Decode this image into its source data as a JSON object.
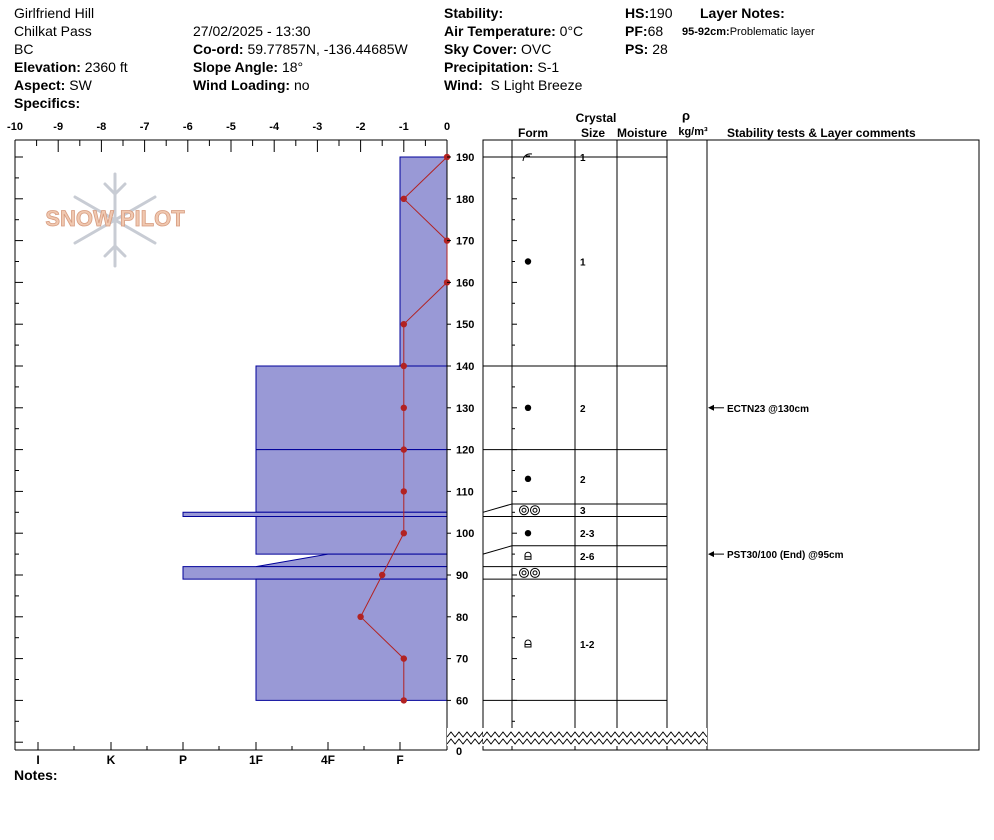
{
  "header": {
    "location": "Girlfriend Hill",
    "area": "Chilkat Pass",
    "region": "BC",
    "datetime": "27/02/2025 - 13:30",
    "elevation_label": "Elevation:",
    "elevation": "2360 ft",
    "aspect_label": "Aspect:",
    "aspect": "SW",
    "specifics_label": "Specifics:",
    "coord_label": "Co-ord:",
    "coord": "59.77857N, -136.44685W",
    "slope_label": "Slope Angle:",
    "slope": "18°",
    "wind_loading_label": "Wind Loading:",
    "wind_loading": "no",
    "stability_label": "Stability:",
    "stability": "",
    "air_temp_label": "Air Temperature:",
    "air_temp": "0°C",
    "sky_label": "Sky Cover:",
    "sky": "OVC",
    "precip_label": "Precipitation:",
    "precip": "S-1",
    "wind_label": "Wind:",
    "wind": "S Light Breeze",
    "hs_label": "HS:",
    "hs": "190",
    "pf_label": "PF:",
    "pf": "68",
    "ps_label": "PS:",
    "ps": "28",
    "layer_notes_label": "Layer Notes:",
    "layer_note_range": "95-92cm:",
    "layer_note_text": "Problematic layer",
    "notes_label": "Notes:",
    "logo_text": "SNOW PILOT"
  },
  "colors": {
    "hardness_fill": "#9999d6",
    "hardness_stroke": "#000099",
    "temp_line": "#b22222",
    "logo": "#f0c8b0"
  },
  "chart_data": {
    "type": "snow_profile",
    "temp_axis": {
      "min": -10,
      "max": 0,
      "ticks": [
        "-10",
        "-9",
        "-8",
        "-7",
        "-6",
        "-5",
        "-4",
        "-3",
        "-2",
        "-1",
        "0"
      ]
    },
    "depth_axis": {
      "min": 60,
      "max": 190,
      "ticks": [
        "190",
        "180",
        "170",
        "160",
        "150",
        "140",
        "130",
        "120",
        "110",
        "100",
        "90",
        "80",
        "70",
        "60"
      ],
      "zero_label": "0"
    },
    "hardness_axis": {
      "labels": [
        "I",
        "K",
        "P",
        "1F",
        "4F",
        "F"
      ]
    },
    "column_headers": {
      "crystal": "Crystal",
      "form": "Form",
      "size": "Size",
      "moisture": "Moisture",
      "density_symbol": "ρ",
      "density_unit": "kg/m³",
      "comments": "Stability tests & Layer comments"
    },
    "temperature_profile": [
      {
        "depth": 190,
        "temp": 0
      },
      {
        "depth": 180,
        "temp": -1
      },
      {
        "depth": 170,
        "temp": 0
      },
      {
        "depth": 160,
        "temp": 0
      },
      {
        "depth": 150,
        "temp": -1
      },
      {
        "depth": 140,
        "temp": -1
      },
      {
        "depth": 130,
        "temp": -1
      },
      {
        "depth": 120,
        "temp": -1
      },
      {
        "depth": 110,
        "temp": -1
      },
      {
        "depth": 100,
        "temp": -1
      },
      {
        "depth": 90,
        "temp": -1.5
      },
      {
        "depth": 80,
        "temp": -2
      },
      {
        "depth": 70,
        "temp": -1
      },
      {
        "depth": 60,
        "temp": -1
      }
    ],
    "hardness_layers": [
      {
        "top": 190,
        "bottom": 140,
        "hardness": "F"
      },
      {
        "top": 140,
        "bottom": 120,
        "hardness": "1F"
      },
      {
        "top": 120,
        "bottom": 105,
        "hardness": "1F"
      },
      {
        "top": 105,
        "bottom": 104,
        "hardness": "P"
      },
      {
        "top": 104,
        "bottom": 95,
        "hardness": "1F"
      },
      {
        "top": 95,
        "bottom": 92,
        "hardness": "4F to 1F"
      },
      {
        "top": 92,
        "bottom": 89,
        "hardness": "P"
      },
      {
        "top": 89,
        "bottom": 60,
        "hardness": "1F"
      }
    ],
    "layers": [
      {
        "top": 190,
        "bottom": 140,
        "form": "decomposing",
        "size": "1"
      },
      {
        "top": 140,
        "bottom": 120,
        "form": "rounded",
        "size": "2"
      },
      {
        "top": 120,
        "bottom": 107,
        "form": "rounded",
        "size": "2"
      },
      {
        "top": 107,
        "bottom": 104,
        "form": "surface hoar",
        "size": "3"
      },
      {
        "top": 104,
        "bottom": 97,
        "form": "rounded",
        "size": "2-3"
      },
      {
        "top": 97,
        "bottom": 92,
        "form": "faceted",
        "size": "2-6"
      },
      {
        "top": 92,
        "bottom": 89,
        "form": "surface hoar",
        "size": ""
      },
      {
        "top": 89,
        "bottom": 60,
        "form": "faceted",
        "size": "1-2"
      }
    ],
    "form_size_marks": [
      {
        "depth": 190,
        "form": "decomposing",
        "size": "1"
      },
      {
        "depth": 165,
        "form": "rounded",
        "size": "1"
      },
      {
        "depth": 130,
        "form": "rounded",
        "size": "2"
      },
      {
        "depth": 113,
        "form": "rounded",
        "size": "2"
      },
      {
        "depth": 105.5,
        "form": "surface hoar",
        "size": "3"
      },
      {
        "depth": 100,
        "form": "rounded",
        "size": "2-3"
      },
      {
        "depth": 94.5,
        "form": "faceted",
        "size": "2-6"
      },
      {
        "depth": 90.5,
        "form": "surface hoar",
        "size": ""
      },
      {
        "depth": 73.5,
        "form": "faceted",
        "size": "1-2"
      }
    ],
    "stability_tests": [
      {
        "depth": 130,
        "text": "ECTN23 @130cm"
      },
      {
        "depth": 95,
        "text": "PST30/100 (End) @95cm"
      }
    ]
  }
}
